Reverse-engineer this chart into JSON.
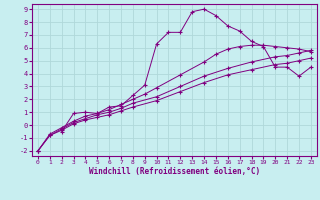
{
  "xlabel": "Windchill (Refroidissement éolien,°C)",
  "bg_color": "#c8eef0",
  "grid_color": "#b0d8da",
  "line_color": "#800080",
  "xlim": [
    -0.5,
    23.5
  ],
  "ylim": [
    -2.4,
    9.4
  ],
  "xticks": [
    0,
    1,
    2,
    3,
    4,
    5,
    6,
    7,
    8,
    9,
    10,
    11,
    12,
    13,
    14,
    15,
    16,
    17,
    18,
    19,
    20,
    21,
    22,
    23
  ],
  "yticks": [
    -2,
    -1,
    0,
    1,
    2,
    3,
    4,
    5,
    6,
    7,
    8,
    9
  ],
  "series": [
    {
      "x": [
        0,
        1,
        2,
        3,
        4,
        5,
        6,
        7,
        8,
        10,
        12,
        14,
        16,
        18,
        20,
        21,
        22,
        23
      ],
      "y": [
        -2.0,
        -0.8,
        -0.4,
        0.1,
        0.4,
        0.6,
        0.8,
        1.1,
        1.4,
        1.9,
        2.6,
        3.3,
        3.9,
        4.3,
        4.7,
        4.8,
        5.0,
        5.2
      ]
    },
    {
      "x": [
        0,
        1,
        2,
        3,
        4,
        5,
        6,
        7,
        8,
        10,
        12,
        14,
        16,
        18,
        20,
        21,
        22,
        23
      ],
      "y": [
        -2.0,
        -0.8,
        -0.3,
        0.2,
        0.5,
        0.8,
        1.0,
        1.3,
        1.7,
        2.2,
        3.0,
        3.8,
        4.4,
        4.9,
        5.3,
        5.4,
        5.6,
        5.8
      ]
    },
    {
      "x": [
        0,
        1,
        2,
        3,
        4,
        5,
        6,
        7,
        8,
        9,
        10,
        12,
        14,
        15,
        16,
        17,
        18,
        19,
        20,
        21,
        22,
        23
      ],
      "y": [
        -2.0,
        -0.7,
        -0.2,
        0.3,
        0.7,
        0.9,
        1.2,
        1.6,
        2.0,
        2.4,
        2.9,
        3.9,
        4.9,
        5.5,
        5.9,
        6.1,
        6.2,
        6.2,
        6.1,
        6.0,
        5.9,
        5.7
      ]
    },
    {
      "x": [
        2,
        3,
        4,
        5,
        6,
        7,
        8,
        9,
        10,
        11,
        12,
        13,
        14,
        15,
        16,
        17,
        18,
        19,
        20,
        21,
        22,
        23
      ],
      "y": [
        -0.5,
        0.9,
        1.0,
        0.9,
        1.4,
        1.5,
        2.3,
        3.1,
        6.3,
        7.2,
        7.2,
        8.8,
        9.0,
        8.5,
        7.7,
        7.3,
        6.5,
        6.1,
        4.5,
        4.5,
        3.8,
        4.5
      ]
    }
  ]
}
